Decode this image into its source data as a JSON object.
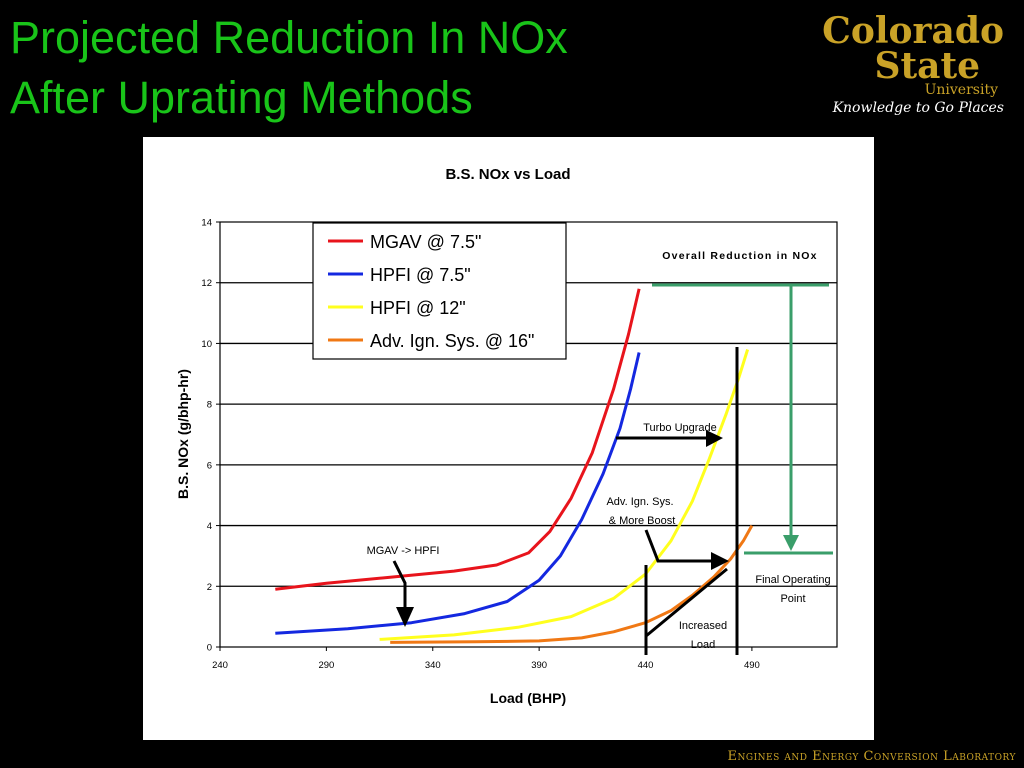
{
  "slide": {
    "title_line1": "Projected Reduction In NOx",
    "title_line2": "After Uprating Methods",
    "footer": "Engines and Energy Conversion Laboratory"
  },
  "logo": {
    "line1": "Colorado",
    "line2": "State",
    "line3": "University",
    "tagline": "Knowledge to Go Places"
  },
  "colors": {
    "title": "#19c419",
    "logo_gold": "#c9a227",
    "mgav": "#e8141c",
    "hpfi75": "#1428e0",
    "hpfi12": "#ffff1e",
    "adv": "#f07814",
    "reduction_arrow": "#3a9e6a"
  },
  "chart_data": {
    "type": "line",
    "title": "B.S. NOx vs Load",
    "xlabel": "Load (BHP)",
    "ylabel": "B.S. NOx (g/bhp-hr)",
    "xlim": [
      240,
      530
    ],
    "ylim": [
      0,
      14
    ],
    "xticks": [
      240,
      290,
      340,
      390,
      440,
      490
    ],
    "yticks": [
      0,
      2,
      4,
      6,
      8,
      10,
      12,
      14
    ],
    "grid": "horizontal",
    "legend_position": "top-center",
    "series": [
      {
        "name": "MGAV @ 7.5\"",
        "color": "#e8141c",
        "x": [
          266,
          290,
          320,
          350,
          370,
          385,
          395,
          405,
          415,
          425,
          432,
          437
        ],
        "y": [
          1.9,
          2.1,
          2.3,
          2.5,
          2.7,
          3.1,
          3.8,
          4.9,
          6.4,
          8.5,
          10.3,
          11.8
        ]
      },
      {
        "name": "HPFI @ 7.5\"",
        "color": "#1428e0",
        "x": [
          266,
          300,
          330,
          355,
          375,
          390,
          400,
          410,
          420,
          428,
          433,
          437
        ],
        "y": [
          0.45,
          0.6,
          0.8,
          1.1,
          1.5,
          2.2,
          3.0,
          4.2,
          5.7,
          7.2,
          8.5,
          9.7
        ]
      },
      {
        "name": "HPFI @ 12\"",
        "color": "#ffff1e",
        "x": [
          315,
          350,
          380,
          405,
          425,
          440,
          452,
          462,
          470,
          478,
          484,
          488
        ],
        "y": [
          0.25,
          0.4,
          0.65,
          1.0,
          1.6,
          2.4,
          3.5,
          4.8,
          6.2,
          7.7,
          8.9,
          9.8
        ]
      },
      {
        "name": "Adv. Ign. Sys. @ 16\"",
        "color": "#f07814",
        "x": [
          320,
          360,
          390,
          410,
          425,
          440,
          452,
          462,
          472,
          480,
          486,
          490
        ],
        "y": [
          0.15,
          0.17,
          0.2,
          0.3,
          0.5,
          0.8,
          1.2,
          1.7,
          2.3,
          2.9,
          3.5,
          4.0
        ]
      }
    ],
    "annotations": {
      "overall_reduction": "Overall Reduction in NOx",
      "turbo_upgrade": "Turbo Upgrade",
      "adv_ign_line1": "Adv. Ign. Sys.",
      "adv_ign_line2": "& More Boost",
      "mgav_hpfi": "MGAV -> HPFI",
      "increased_line1": "Increased",
      "increased_line2": "Load",
      "final_line1": "Final Operating",
      "final_line2": "Point"
    }
  }
}
